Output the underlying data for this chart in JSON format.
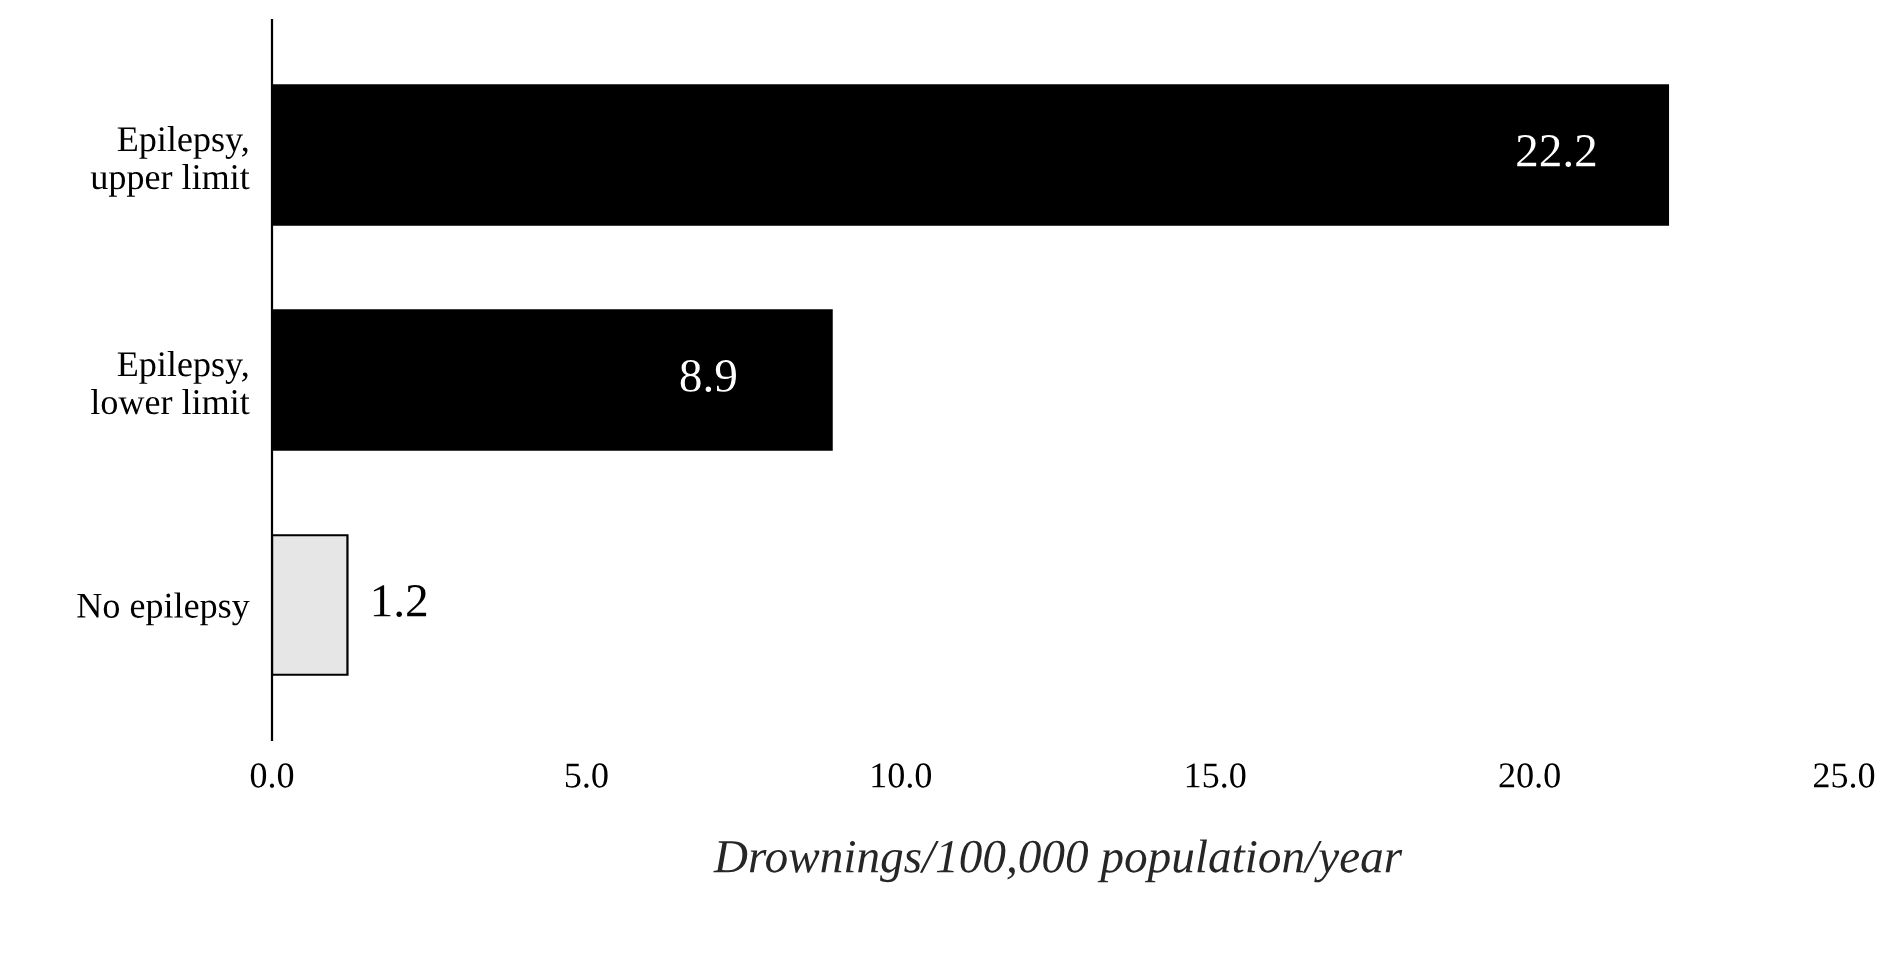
{
  "chart_data": {
    "type": "bar",
    "orientation": "horizontal",
    "xlabel": "Drownings/100,000 population/year",
    "categories": [
      "Epilepsy,\nupper limit",
      "Epilepsy,\nlower limit",
      "No epilepsy"
    ],
    "values": [
      22.2,
      8.9,
      1.2
    ],
    "colors": [
      "#000000",
      "#000000",
      "#e6e6e6"
    ],
    "xlim": [
      0,
      25
    ],
    "xticks": [
      {
        "value": 0,
        "label": "0.0"
      },
      {
        "value": 5,
        "label": "5.0"
      },
      {
        "value": 10,
        "label": "10.0"
      },
      {
        "value": 15,
        "label": "15.0"
      },
      {
        "value": 20,
        "label": "20.0"
      },
      {
        "value": 25,
        "label": "25.0"
      }
    ],
    "data_labels": true,
    "grid": false,
    "legend": false
  }
}
